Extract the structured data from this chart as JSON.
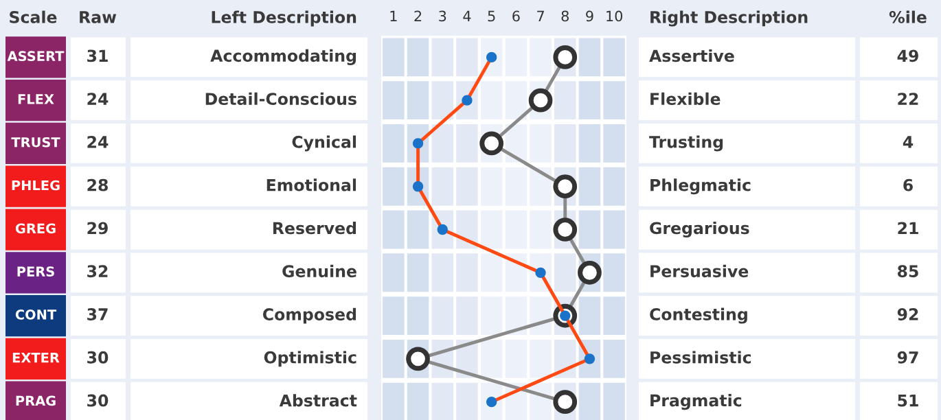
{
  "chart_data": {
    "type": "line",
    "orientation": "horizontal",
    "categories": [
      "Accommodating",
      "Detail-Conscious",
      "Cynical",
      "Emotional",
      "Reserved",
      "Genuine",
      "Composed",
      "Optimistic",
      "Abstract"
    ],
    "y2_categories": [
      "Assertive",
      "Flexible",
      "Trusting",
      "Phlegmatic",
      "Gregarious",
      "Persuasive",
      "Contesting",
      "Pessimistic",
      "Pragmatic"
    ],
    "series": [
      {
        "color": "#ff4a14",
        "values": [
          5,
          4,
          2,
          2,
          3,
          7,
          8,
          9,
          5
        ]
      },
      {
        "color": "#8a8a8a",
        "values": [
          8,
          7,
          5,
          8,
          8,
          9,
          8,
          2,
          8
        ]
      }
    ],
    "xlim": [
      0.5,
      10.5
    ],
    "xticks": [
      1,
      2,
      3,
      4,
      5,
      6,
      7,
      8,
      9,
      10
    ],
    "marker": "circle",
    "grid": false,
    "legend": false,
    "bands": [
      {
        "axis": "x",
        "from": 0.5,
        "to": 2.5,
        "color": "#d3deef"
      },
      {
        "axis": "x",
        "from": 2.5,
        "to": 4.5,
        "color": "#e2e9f5"
      },
      {
        "axis": "x",
        "from": 4.5,
        "to": 7.5,
        "color": "#edf1f9"
      },
      {
        "axis": "x",
        "from": 7.5,
        "to": 8.5,
        "color": "#e2e9f5"
      },
      {
        "axis": "x",
        "from": 8.5,
        "to": 10.5,
        "color": "#d3deef"
      }
    ],
    "annotations": [
      "Scale",
      "Raw",
      "Left Description",
      "Right Description",
      "%ile",
      "ASSERT",
      "31",
      "49",
      "FLEX",
      "24",
      "22",
      "TRUST",
      "24",
      "4",
      "PHLEG",
      "28",
      "6",
      "GREG",
      "29",
      "21",
      "PERS",
      "32",
      "85",
      "CONT",
      "37",
      "92",
      "EXTER",
      "30",
      "97",
      "PRAG",
      "30",
      "51"
    ]
  }
}
